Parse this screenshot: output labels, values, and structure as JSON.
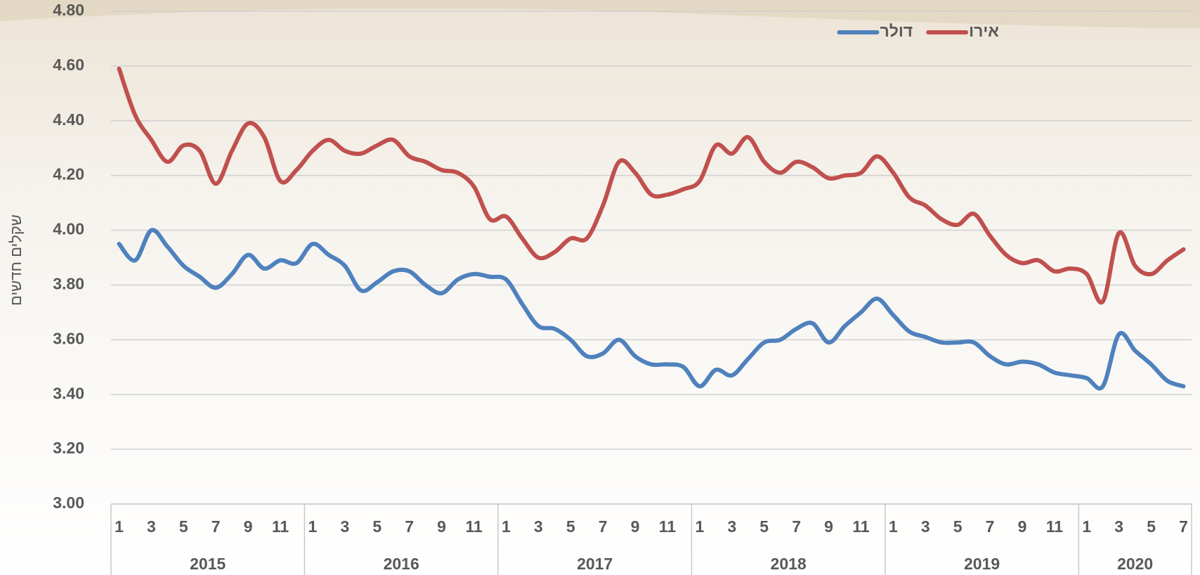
{
  "chart_data": {
    "type": "line",
    "y_label": "שקלים חדשים",
    "ylim": [
      3.0,
      4.8
    ],
    "yticks": [
      {
        "value": 3.0,
        "label": "3.00"
      },
      {
        "value": 3.2,
        "label": "3.20"
      },
      {
        "value": 3.4,
        "label": "3.40"
      },
      {
        "value": 3.6,
        "label": "3.60"
      },
      {
        "value": 3.8,
        "label": "3.80"
      },
      {
        "value": 4.0,
        "label": "4.00"
      },
      {
        "value": 4.2,
        "label": "4.20"
      },
      {
        "value": 4.4,
        "label": "4.40"
      },
      {
        "value": 4.6,
        "label": "4.60"
      },
      {
        "value": 4.8,
        "label": "4.80"
      }
    ],
    "grid": true,
    "legend_position": "top-right",
    "categories": [
      "1",
      null,
      "3",
      null,
      "5",
      null,
      "7",
      null,
      "9",
      null,
      "11",
      null,
      "1",
      null,
      "3",
      null,
      "5",
      null,
      "7",
      null,
      "9",
      null,
      "11",
      null,
      "1",
      null,
      "3",
      null,
      "5",
      null,
      "7",
      null,
      "9",
      null,
      "11",
      null,
      "1",
      null,
      "3",
      null,
      "5",
      null,
      "7",
      null,
      "9",
      null,
      "11",
      null,
      "1",
      null,
      "3",
      null,
      "5",
      null,
      "7",
      null,
      "9",
      null,
      "11",
      null,
      "1",
      null,
      "3",
      null,
      "5",
      null,
      "7"
    ],
    "category_groups": [
      "2015",
      "2016",
      "2017",
      "2018",
      "2019",
      "2020"
    ],
    "series": [
      {
        "name": "אירו",
        "color": "#c0504d",
        "values": [
          4.59,
          4.42,
          4.33,
          4.25,
          4.31,
          4.29,
          4.17,
          4.29,
          4.39,
          4.34,
          4.18,
          4.22,
          4.29,
          4.33,
          4.29,
          4.28,
          4.31,
          4.33,
          4.27,
          4.25,
          4.22,
          4.21,
          4.16,
          4.04,
          4.05,
          3.97,
          3.9,
          3.92,
          3.97,
          3.97,
          4.09,
          4.25,
          4.21,
          4.13,
          4.13,
          4.15,
          4.18,
          4.31,
          4.28,
          4.34,
          4.25,
          4.21,
          4.25,
          4.23,
          4.19,
          4.2,
          4.21,
          4.27,
          4.21,
          4.12,
          4.09,
          4.04,
          4.02,
          4.06,
          3.98,
          3.91,
          3.88,
          3.89,
          3.85,
          3.86,
          3.84,
          3.74,
          3.99,
          3.87,
          3.84,
          3.89,
          3.93
        ]
      },
      {
        "name": "דולר",
        "color": "#4f81bd",
        "values": [
          3.95,
          3.89,
          4.0,
          3.94,
          3.87,
          3.83,
          3.79,
          3.84,
          3.91,
          3.86,
          3.89,
          3.88,
          3.95,
          3.91,
          3.87,
          3.78,
          3.81,
          3.85,
          3.85,
          3.8,
          3.77,
          3.82,
          3.84,
          3.83,
          3.82,
          3.73,
          3.65,
          3.64,
          3.6,
          3.54,
          3.55,
          3.6,
          3.54,
          3.51,
          3.51,
          3.5,
          3.43,
          3.49,
          3.47,
          3.53,
          3.59,
          3.6,
          3.64,
          3.66,
          3.59,
          3.65,
          3.7,
          3.75,
          3.69,
          3.63,
          3.61,
          3.59,
          3.59,
          3.59,
          3.54,
          3.51,
          3.52,
          3.51,
          3.48,
          3.47,
          3.46,
          3.43,
          3.62,
          3.56,
          3.51,
          3.45,
          3.43
        ]
      }
    ]
  }
}
